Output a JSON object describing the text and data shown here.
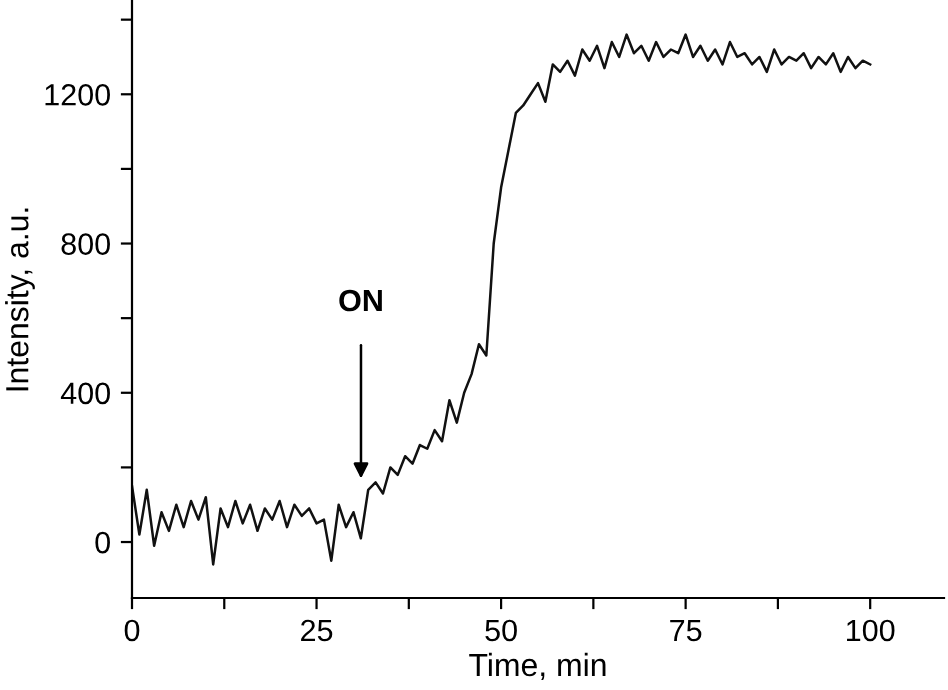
{
  "chart_data": {
    "type": "line",
    "xlabel": "Time, min",
    "ylabel": "Intensity, a.u.",
    "x": [
      0,
      1,
      2,
      3,
      4,
      5,
      6,
      7,
      8,
      9,
      10,
      11,
      12,
      13,
      14,
      15,
      16,
      17,
      18,
      19,
      20,
      21,
      22,
      23,
      24,
      25,
      26,
      27,
      28,
      29,
      30,
      31,
      32,
      33,
      34,
      35,
      36,
      37,
      38,
      39,
      40,
      41,
      42,
      43,
      44,
      45,
      46,
      47,
      48,
      49,
      50,
      51,
      52,
      53,
      54,
      55,
      56,
      57,
      58,
      59,
      60,
      61,
      62,
      63,
      64,
      65,
      66,
      67,
      68,
      69,
      70,
      71,
      72,
      73,
      74,
      75,
      76,
      77,
      78,
      79,
      80,
      81,
      82,
      83,
      84,
      85,
      86,
      87,
      88,
      89,
      90,
      91,
      92,
      93,
      94,
      95,
      96,
      97,
      98,
      99,
      100
    ],
    "series": [
      {
        "color": "#111111",
        "values": [
          150,
          20,
          140,
          -10,
          80,
          30,
          100,
          40,
          110,
          60,
          120,
          -60,
          90,
          40,
          110,
          50,
          100,
          30,
          90,
          60,
          110,
          40,
          100,
          70,
          90,
          50,
          60,
          -50,
          100,
          40,
          80,
          10,
          140,
          160,
          130,
          200,
          180,
          230,
          210,
          260,
          250,
          300,
          270,
          380,
          320,
          400,
          450,
          530,
          500,
          800,
          950,
          1050,
          1150,
          1170,
          1200,
          1230,
          1180,
          1280,
          1260,
          1290,
          1250,
          1320,
          1290,
          1330,
          1270,
          1340,
          1300,
          1360,
          1310,
          1330,
          1290,
          1340,
          1300,
          1320,
          1310,
          1360,
          1300,
          1330,
          1290,
          1320,
          1280,
          1340,
          1300,
          1310,
          1280,
          1300,
          1260,
          1320,
          1280,
          1300,
          1290,
          1310,
          1270,
          1300,
          1280,
          1310,
          1260,
          1300,
          1270,
          1290,
          1280
        ]
      }
    ],
    "xlim": [
      0,
      110
    ],
    "ylim": [
      -150,
      1450
    ],
    "xticks": [
      0,
      {
        "value": 12.5,
        "label": null
      },
      25,
      {
        "value": 37.5,
        "label": null
      },
      50,
      {
        "value": 62.5,
        "label": null
      },
      75,
      {
        "value": 87.5,
        "label": null
      },
      100
    ],
    "yticks": [
      0,
      {
        "value": 200,
        "label": null
      },
      400,
      {
        "value": 600,
        "label": null
      },
      800,
      {
        "value": 1000,
        "label": null
      },
      1200,
      {
        "value": 1400,
        "label": null
      }
    ],
    "annotations": [
      "ON"
    ],
    "grid": false,
    "legend": false,
    "marker": "none",
    "line_style": "solid"
  }
}
